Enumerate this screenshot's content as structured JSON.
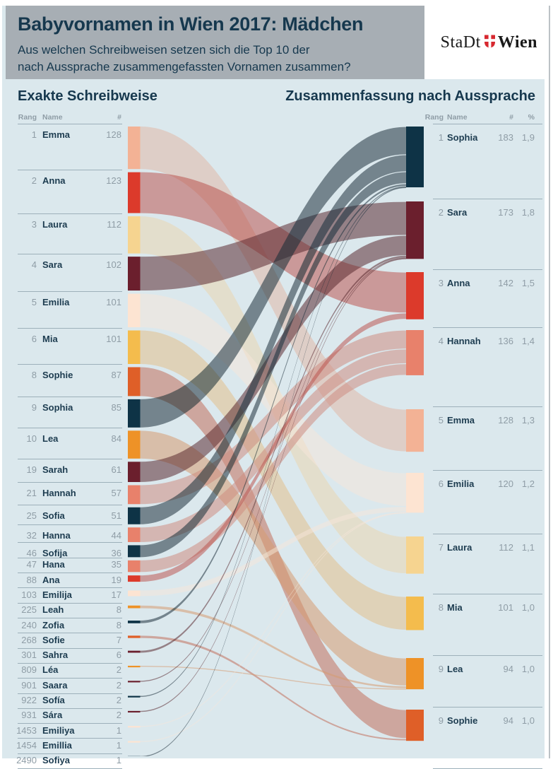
{
  "header": {
    "title": "Babyvornamen in Wien 2017: Mädchen",
    "subtitle_line1": "Aus welchen Schreibweisen setzen sich die Top 10 der",
    "subtitle_line2": "nach Aussprache zusammengefassten Vornamen zusammen?",
    "logo": {
      "text1": "StaDt",
      "text2": "Wien",
      "icon": "wien-shield"
    }
  },
  "left_panel": {
    "title": "Exakte Schreibweise",
    "columns": [
      "Rang",
      "Name",
      "#"
    ]
  },
  "right_panel": {
    "title": "Zusammenfassung nach Aussprache",
    "columns": [
      "Rang",
      "Name",
      "#",
      "%"
    ]
  },
  "palette": {
    "background": "#dbe8ed",
    "header_band": "#a7aeb4",
    "heading_text": "#16384e",
    "name_text": "#1d3c50",
    "muted_text": "#8f9da6",
    "separator": "#9db0ba",
    "logo_red": "#d7282f"
  },
  "chart_data": {
    "type": "sankey",
    "left_title": "Exakte Schreibweise",
    "right_title": "Zusammenfassung nach Aussprache",
    "left_nodes": [
      {
        "rank": 1,
        "name": "Emma",
        "count": 128,
        "group": "Emma"
      },
      {
        "rank": 2,
        "name": "Anna",
        "count": 123,
        "group": "Anna"
      },
      {
        "rank": 3,
        "name": "Laura",
        "count": 112,
        "group": "Laura"
      },
      {
        "rank": 4,
        "name": "Sara",
        "count": 102,
        "group": "Sara"
      },
      {
        "rank": 5,
        "name": "Emilia",
        "count": 101,
        "group": "Emilia"
      },
      {
        "rank": 6,
        "name": "Mia",
        "count": 101,
        "group": "Mia"
      },
      {
        "rank": 8,
        "name": "Sophie",
        "count": 87,
        "group": "Sophie"
      },
      {
        "rank": 9,
        "name": "Sophia",
        "count": 85,
        "group": "Sophia"
      },
      {
        "rank": 10,
        "name": "Lea",
        "count": 84,
        "group": "Lea"
      },
      {
        "rank": 19,
        "name": "Sarah",
        "count": 61,
        "group": "Sara"
      },
      {
        "rank": 21,
        "name": "Hannah",
        "count": 57,
        "group": "Hannah"
      },
      {
        "rank": 25,
        "name": "Sofia",
        "count": 51,
        "group": "Sophia"
      },
      {
        "rank": 32,
        "name": "Hanna",
        "count": 44,
        "group": "Hannah"
      },
      {
        "rank": 46,
        "name": "Sofija",
        "count": 36,
        "group": "Sophia"
      },
      {
        "rank": 47,
        "name": "Hana",
        "count": 35,
        "group": "Hannah"
      },
      {
        "rank": 88,
        "name": "Ana",
        "count": 19,
        "group": "Anna"
      },
      {
        "rank": 103,
        "name": "Emilija",
        "count": 17,
        "group": "Emilia"
      },
      {
        "rank": 225,
        "name": "Leah",
        "count": 8,
        "group": "Lea"
      },
      {
        "rank": 240,
        "name": "Zofia",
        "count": 8,
        "group": "Sophia"
      },
      {
        "rank": 268,
        "name": "Sofie",
        "count": 7,
        "group": "Sophie"
      },
      {
        "rank": 301,
        "name": "Sahra",
        "count": 6,
        "group": "Sara"
      },
      {
        "rank": 809,
        "name": "Léa",
        "count": 2,
        "group": "Lea"
      },
      {
        "rank": 901,
        "name": "Saara",
        "count": 2,
        "group": "Sara"
      },
      {
        "rank": 922,
        "name": "Sofía",
        "count": 2,
        "group": "Sophia"
      },
      {
        "rank": 931,
        "name": "Sára",
        "count": 2,
        "group": "Sara"
      },
      {
        "rank": 1453,
        "name": "Emiliya",
        "count": 1,
        "group": "Emilia"
      },
      {
        "rank": 1454,
        "name": "Emillia",
        "count": 1,
        "group": "Emilia"
      },
      {
        "rank": 2490,
        "name": "Sofiya",
        "count": 1,
        "group": "Sophia"
      }
    ],
    "right_nodes": [
      {
        "rank": 1,
        "name": "Sophia",
        "count": 183,
        "pct": "1,9",
        "color": "#0e3346"
      },
      {
        "rank": 2,
        "name": "Sara",
        "count": 173,
        "pct": "1,8",
        "color": "#6b1f2d"
      },
      {
        "rank": 3,
        "name": "Anna",
        "count": 142,
        "pct": "1,5",
        "color": "#dc3a2b"
      },
      {
        "rank": 4,
        "name": "Hannah",
        "count": 136,
        "pct": "1,4",
        "color": "#e8816b"
      },
      {
        "rank": 5,
        "name": "Emma",
        "count": 128,
        "pct": "1,3",
        "color": "#f3b295"
      },
      {
        "rank": 6,
        "name": "Emilia",
        "count": 120,
        "pct": "1,2",
        "color": "#fde4d2"
      },
      {
        "rank": 7,
        "name": "Laura",
        "count": 112,
        "pct": "1,1",
        "color": "#f6d490"
      },
      {
        "rank": 8,
        "name": "Mia",
        "count": 101,
        "pct": "1,0",
        "color": "#f4bc4d"
      },
      {
        "rank": 9,
        "name": "Lea",
        "count": 94,
        "pct": "1,0",
        "color": "#ee9227"
      },
      {
        "rank": 9,
        "name": "Sophie",
        "count": 94,
        "pct": "1,0",
        "color": "#df5f28"
      }
    ]
  }
}
